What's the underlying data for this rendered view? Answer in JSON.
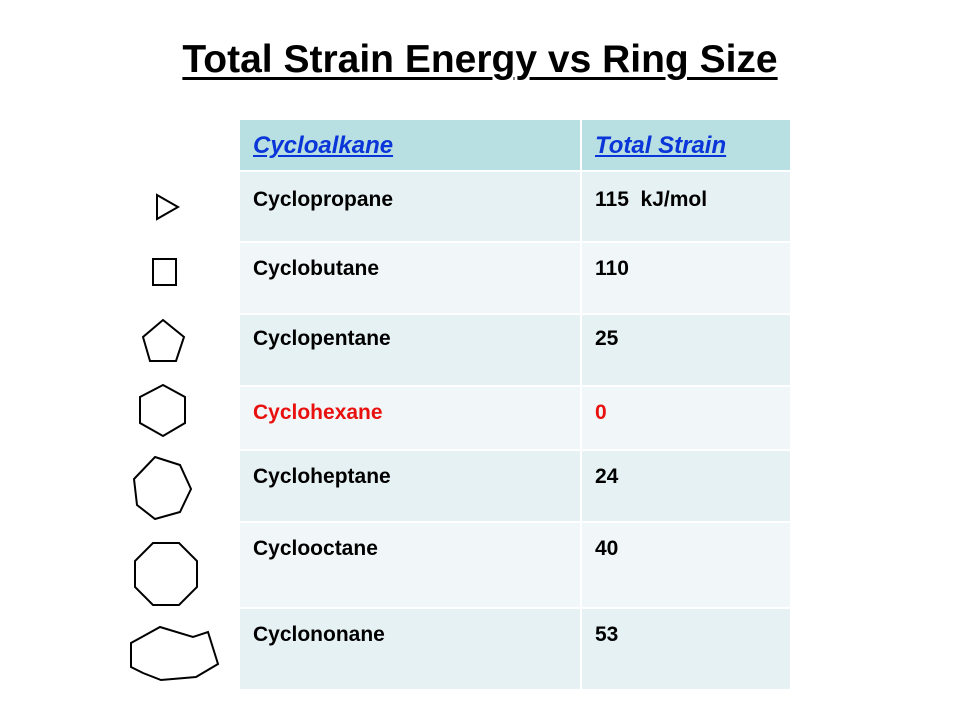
{
  "title": "Total Strain Energy vs Ring Size",
  "table": {
    "headers": [
      "Cycloalkane",
      "Total Strain"
    ],
    "rows": [
      {
        "name": "Cyclopropane",
        "strain": "115  kJ/mol",
        "ring_icon": "triangle-icon"
      },
      {
        "name": "Cyclobutane",
        "strain": "110",
        "ring_icon": "square-icon"
      },
      {
        "name": "Cyclopentane",
        "strain": "25",
        "ring_icon": "pentagon-icon"
      },
      {
        "name": "Cyclohexane",
        "strain": "0",
        "ring_icon": "hexagon-icon",
        "highlight_color": "#e8110f"
      },
      {
        "name": "Cycloheptane",
        "strain": "24",
        "ring_icon": "heptagon-icon"
      },
      {
        "name": "Cyclooctane",
        "strain": "40",
        "ring_icon": "octagon-icon"
      },
      {
        "name": "Cyclononane",
        "strain": "53",
        "ring_icon": "nonagon-icon"
      }
    ]
  },
  "colors": {
    "header_bg": "#b8dfe2",
    "header_text": "#0a35d8",
    "row_odd": "#e6f1f3",
    "row_even": "#f1f7f8"
  }
}
